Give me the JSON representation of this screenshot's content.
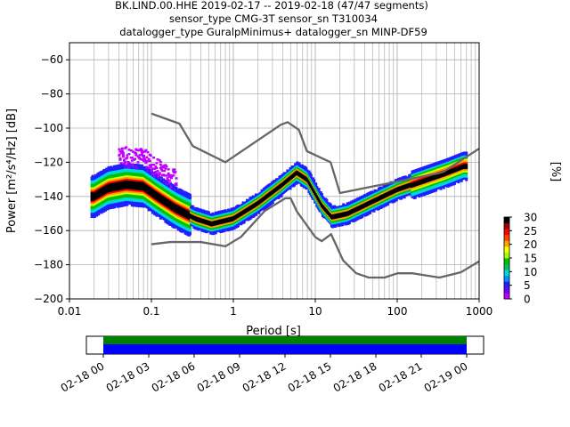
{
  "title_lines": [
    "BK.LIND.00.HHE   2019-02-17 -- 2019-02-18  (47/47 segments)",
    "sensor_type CMG-3T sensor_sn T310034",
    "datalogger_type GuralpMinimus+ datalogger_sn MINP-DF59"
  ],
  "colorbar": {
    "label": "[%]",
    "ticks": [
      "0",
      "5",
      "10",
      "15",
      "20",
      "25",
      "30"
    ],
    "range": [
      0,
      30
    ]
  },
  "timeline": {
    "ticks": [
      "02-18 00",
      "02-18 03",
      "02-18 06",
      "02-18 09",
      "02-18 12",
      "02-18 15",
      "02-18 18",
      "02-18 21",
      "02-19 00"
    ],
    "coverage_colors": [
      "#008000",
      "#0000ff"
    ]
  },
  "chart_data": {
    "type": "heatmap",
    "xscale": "log",
    "xlabel": "Period [s]",
    "ylabel": "Power [m²/s⁴/Hz] [dB]",
    "xlim": [
      0.01,
      1000
    ],
    "ylim": [
      -200,
      -50
    ],
    "x_ticks": [
      "0.01",
      "0.1",
      "1",
      "10",
      "100",
      "1000"
    ],
    "y_ticks": [
      "−60",
      "−80",
      "−100",
      "−120",
      "−140",
      "−160",
      "−180",
      "−200"
    ],
    "grid": true,
    "series": [
      {
        "role": "high-noise-model",
        "color": "#666666",
        "x": [
          0.1,
          0.22,
          0.32,
          0.8,
          3.8,
          4.6,
          6.3,
          7.9,
          15.4,
          20,
          354.8,
          1000
        ],
        "y": [
          -91.5,
          -97.4,
          -110.5,
          -120,
          -98,
          -96.5,
          -101,
          -113.5,
          -120,
          -138,
          -126,
          -112
        ]
      },
      {
        "role": "low-noise-model",
        "color": "#666666",
        "x": [
          0.1,
          0.17,
          0.4,
          0.8,
          1.24,
          2.4,
          4.3,
          5,
          6,
          10,
          12,
          15.6,
          21.9,
          31.6,
          45,
          70,
          101,
          154,
          328,
          600,
          1000
        ],
        "y": [
          -168,
          -166.7,
          -166.7,
          -169.2,
          -163.7,
          -148.6,
          -141.1,
          -141.1,
          -149,
          -163.8,
          -166.2,
          -162.1,
          -177.5,
          -185,
          -187.5,
          -187.5,
          -185,
          -185,
          -187.5,
          -184.4,
          -178
        ]
      },
      {
        "role": "mode",
        "color": "#000000",
        "x": [
          0.02,
          0.03,
          0.05,
          0.08,
          0.12,
          0.2,
          0.35,
          0.55,
          1.0,
          2.0,
          4.0,
          6.0,
          8.0,
          12.0,
          16.0,
          25.0,
          50.0,
          100.0,
          200.0,
          400.0,
          650.0
        ],
        "y": [
          -140,
          -135,
          -133,
          -134,
          -140,
          -147,
          -153,
          -156,
          -153,
          -144,
          -133,
          -126,
          -130,
          -145,
          -152,
          -150,
          -143,
          -136,
          -131,
          -126,
          -122
        ]
      }
    ]
  }
}
